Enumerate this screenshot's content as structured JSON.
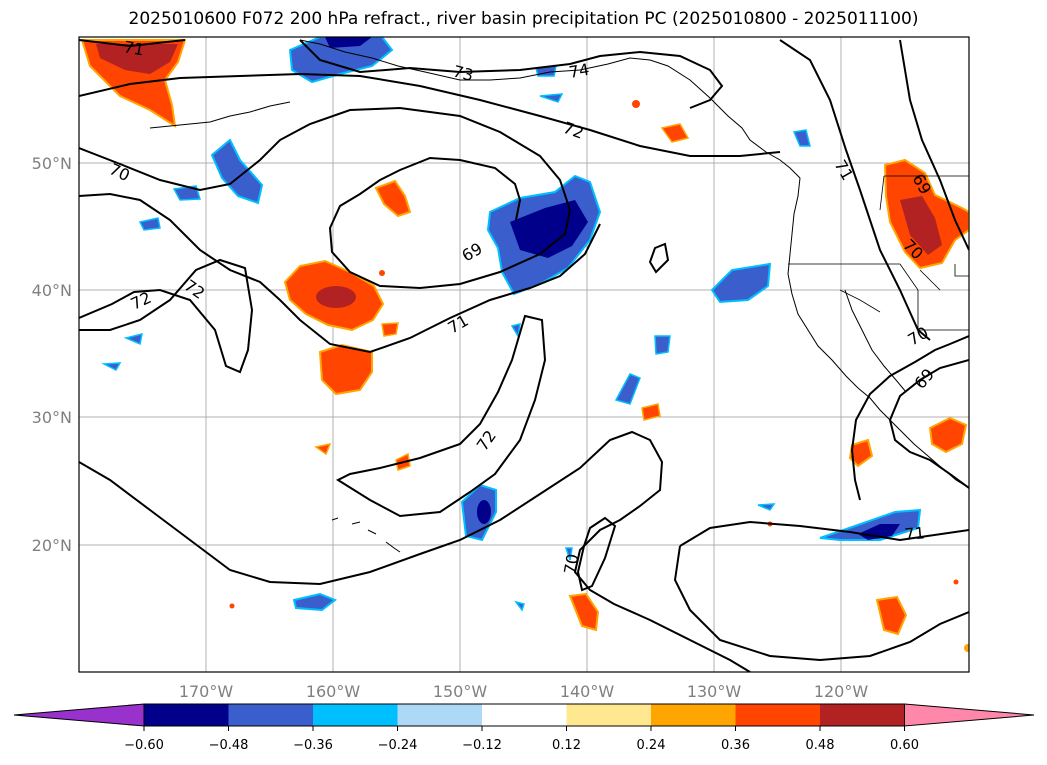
{
  "title": "2025010600 F072 200 hPa refract., river basin precipitation PC (2025010800 - 2025011100)",
  "map": {
    "lat_ticks": [
      "50°N",
      "40°N",
      "30°N",
      "20°N"
    ],
    "lon_ticks": [
      "170°W",
      "160°W",
      "150°W",
      "140°W",
      "130°W",
      "120°W"
    ],
    "contour_labels": [
      "71",
      "73",
      "74",
      "72",
      "70",
      "69",
      "71",
      "72",
      "72",
      "71",
      "69",
      "70",
      "70",
      "69",
      "72",
      "70",
      "71"
    ],
    "contour_color": "#000000",
    "grid": true
  },
  "colorbar": {
    "ticks": [
      "−0.60",
      "−0.48",
      "−0.36",
      "−0.24",
      "−0.12",
      "0.12",
      "0.24",
      "0.36",
      "0.48",
      "0.60"
    ],
    "colors": [
      "#9932cc",
      "#00008b",
      "#3a5fcd",
      "#00bfff",
      "#add8f6",
      "#ffffff",
      "#ffe88f",
      "#ffa500",
      "#ff4500",
      "#b22222",
      "#ff88aa"
    ],
    "extend": "both"
  }
}
